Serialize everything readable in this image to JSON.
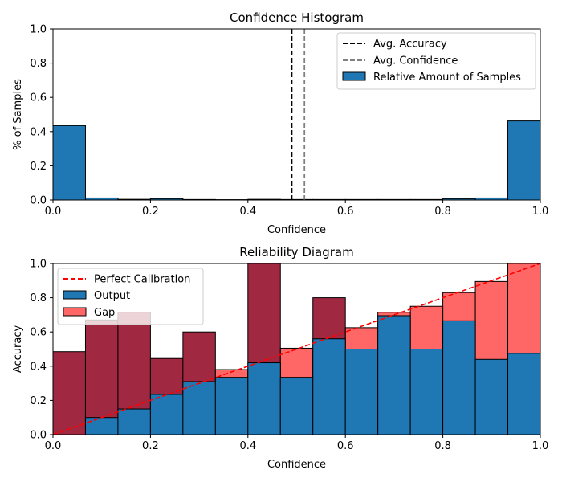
{
  "chart_data": [
    {
      "type": "bar",
      "title": "Confidence Histogram",
      "xlabel": "Confidence",
      "ylabel": "% of Samples",
      "xlim": [
        0,
        1
      ],
      "ylim": [
        0,
        1
      ],
      "xticks": [
        "0.0",
        "0.2",
        "0.4",
        "0.6",
        "0.8",
        "1.0"
      ],
      "yticks": [
        "0.0",
        "0.2",
        "0.4",
        "0.6",
        "0.8",
        "1.0"
      ],
      "bins": 15,
      "values": [
        0.435,
        0.012,
        0.004,
        0.008,
        0.003,
        0.002,
        0.004,
        0.003,
        0.003,
        0.003,
        0.003,
        0.003,
        0.008,
        0.012,
        0.462
      ],
      "bar_color": "#1f77b4",
      "lines": [
        {
          "name": "Avg. Accuracy",
          "x": 0.49,
          "color": "#000000",
          "style": "dashed"
        },
        {
          "name": "Avg. Confidence",
          "x": 0.516,
          "color": "#808080",
          "style": "dashed"
        }
      ],
      "legend": {
        "position": "top-right",
        "entries": [
          {
            "label": "Avg. Accuracy",
            "kind": "line",
            "color": "#000000"
          },
          {
            "label": "Avg. Confidence",
            "kind": "line",
            "color": "#808080"
          },
          {
            "label": "Relative Amount of Samples",
            "kind": "patch",
            "color": "#1f77b4"
          }
        ]
      }
    },
    {
      "type": "bar",
      "title": "Reliability Diagram",
      "xlabel": "Confidence",
      "ylabel": "Accuracy",
      "xlim": [
        0,
        1
      ],
      "ylim": [
        0,
        1
      ],
      "xticks": [
        "0.0",
        "0.2",
        "0.4",
        "0.6",
        "0.8",
        "1.0"
      ],
      "yticks": [
        "0.0",
        "0.2",
        "0.4",
        "0.6",
        "0.8",
        "1.0"
      ],
      "bins": 15,
      "series": [
        {
          "name": "Output",
          "color": "#1f77b4",
          "values": [
            0.0,
            0.1,
            0.15,
            0.235,
            0.31,
            0.335,
            0.42,
            0.335,
            0.56,
            0.5,
            0.695,
            0.5,
            0.665,
            0.44,
            0.475
          ]
        },
        {
          "name": "Gap",
          "color": "#ff0000",
          "alpha": 0.6,
          "top_values": [
            0.485,
            0.67,
            0.715,
            0.445,
            0.6,
            0.38,
            1.0,
            0.505,
            0.8,
            0.625,
            0.715,
            0.75,
            0.83,
            0.895,
            1.0
          ]
        }
      ],
      "reference_line": {
        "name": "Perfect Calibration",
        "from": [
          0,
          0
        ],
        "to": [
          1,
          1
        ],
        "color": "#ff0000",
        "style": "dashed"
      },
      "legend": {
        "position": "top-left",
        "entries": [
          {
            "label": "Perfect Calibration",
            "kind": "line",
            "color": "#ff0000"
          },
          {
            "label": "Output",
            "kind": "patch",
            "color": "#1f77b4"
          },
          {
            "label": "Gap",
            "kind": "patch",
            "color": "#ff0000"
          }
        ]
      }
    }
  ]
}
